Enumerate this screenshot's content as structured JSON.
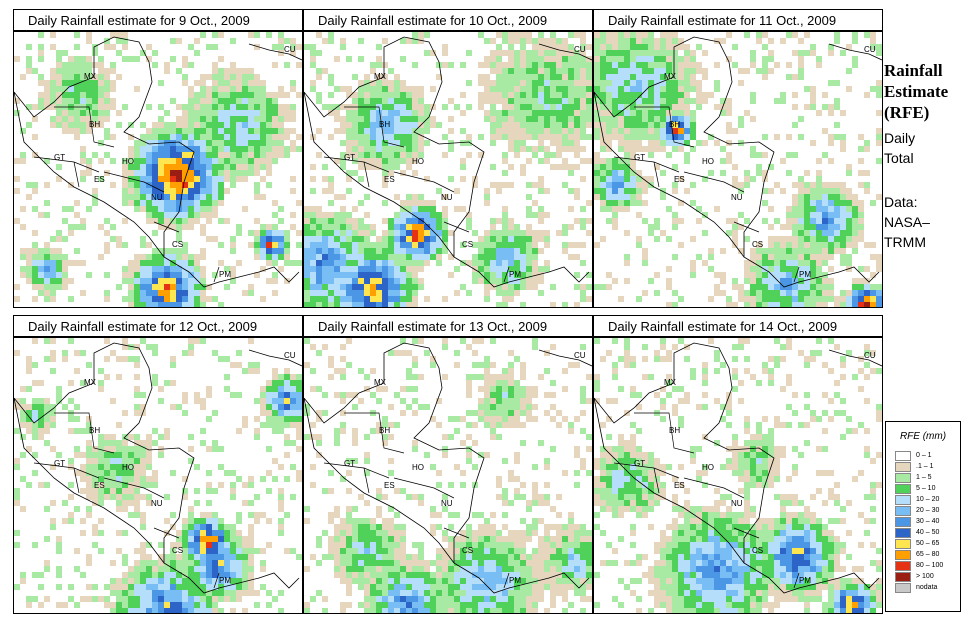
{
  "panels": [
    {
      "title": "Daily Rainfall estimate for  9 Oct., 2009",
      "date": "2009-10-09"
    },
    {
      "title": "Daily Rainfall estimate for  10 Oct., 2009",
      "date": "2009-10-10"
    },
    {
      "title": "Daily Rainfall estimate for  11 Oct., 2009",
      "date": "2009-10-11"
    },
    {
      "title": "Daily Rainfall estimate for  12 Oct., 2009",
      "date": "2009-10-12"
    },
    {
      "title": "Daily Rainfall estimate for  13 Oct., 2009",
      "date": "2009-10-13"
    },
    {
      "title": "Daily Rainfall estimate for  14 Oct., 2009",
      "date": "2009-10-14"
    }
  ],
  "country_labels": [
    "MX",
    "CU",
    "BH",
    "GT",
    "HO",
    "ES",
    "NU",
    "CS",
    "PM"
  ],
  "side": {
    "title_line1": "Rainfall",
    "title_line2": "Estimate",
    "title_line3": "(RFE)",
    "daily_line1": "Daily",
    "daily_line2": "Total",
    "data_line1": "Data:",
    "data_line2": "NASA–",
    "data_line3": "TRMM"
  },
  "legend": {
    "title": "RFE (mm)",
    "items": [
      {
        "label": "0 – 1",
        "color": "#ffffff"
      },
      {
        "label": ".1 – 1",
        "color": "#e6d6bd"
      },
      {
        "label": "1 – 5",
        "color": "#a8eaa3"
      },
      {
        "label": "5 – 10",
        "color": "#50d25a"
      },
      {
        "label": "10 – 20",
        "color": "#b4defa"
      },
      {
        "label": "20 – 30",
        "color": "#78bdf4"
      },
      {
        "label": "30 – 40",
        "color": "#4b97e6"
      },
      {
        "label": "40 – 50",
        "color": "#2d64c8"
      },
      {
        "label": "50 – 65",
        "color": "#ffe650"
      },
      {
        "label": "65 – 80",
        "color": "#ffa000"
      },
      {
        "label": "80 – 100",
        "color": "#e63214"
      },
      {
        "label": "> 100",
        "color": "#9b1e14"
      },
      {
        "label": "nodata",
        "color": "#c8c8c8"
      }
    ]
  }
}
